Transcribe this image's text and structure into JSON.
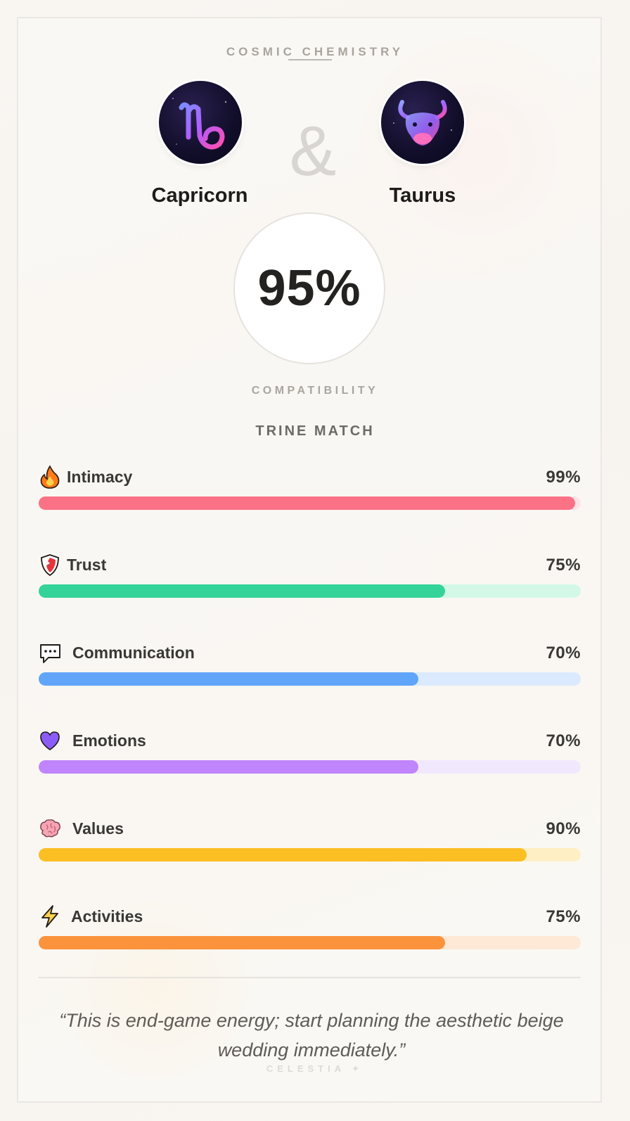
{
  "header": {
    "eyebrow": "COSMIC CHEMISTRY"
  },
  "pair": {
    "left_sign": "Capricorn",
    "right_sign": "Taurus",
    "connector": "&"
  },
  "score": {
    "value": "95%",
    "label": "COMPATIBILITY",
    "match_type": "TRINE MATCH"
  },
  "metrics": [
    {
      "label": "Intimacy",
      "value": "99%",
      "fraction": 0.99,
      "icon": "flame-icon",
      "color": "#fb7185",
      "track": "#fde2e6"
    },
    {
      "label": "Trust",
      "value": "75%",
      "fraction": 0.75,
      "icon": "shield-icon",
      "color": "#34d399",
      "track": "#d3f8e8"
    },
    {
      "label": "Communication",
      "value": "70%",
      "fraction": 0.7,
      "icon": "speech-bubble-icon",
      "color": "#60a5fa",
      "track": "#dbeafe"
    },
    {
      "label": "Emotions",
      "value": "70%",
      "fraction": 0.7,
      "icon": "heart-icon",
      "color": "#c084fc",
      "track": "#f1e8fe"
    },
    {
      "label": "Values",
      "value": "90%",
      "fraction": 0.9,
      "icon": "brain-icon",
      "color": "#fbbf24",
      "track": "#fef0c4"
    },
    {
      "label": "Activities",
      "value": "75%",
      "fraction": 0.75,
      "icon": "lightning-icon",
      "color": "#fb923c",
      "track": "#fde9d6"
    }
  ],
  "quote": "“This is end-game energy; start planning the aesthetic beige wedding immediately.”",
  "brand": "CELESTIA ✦"
}
